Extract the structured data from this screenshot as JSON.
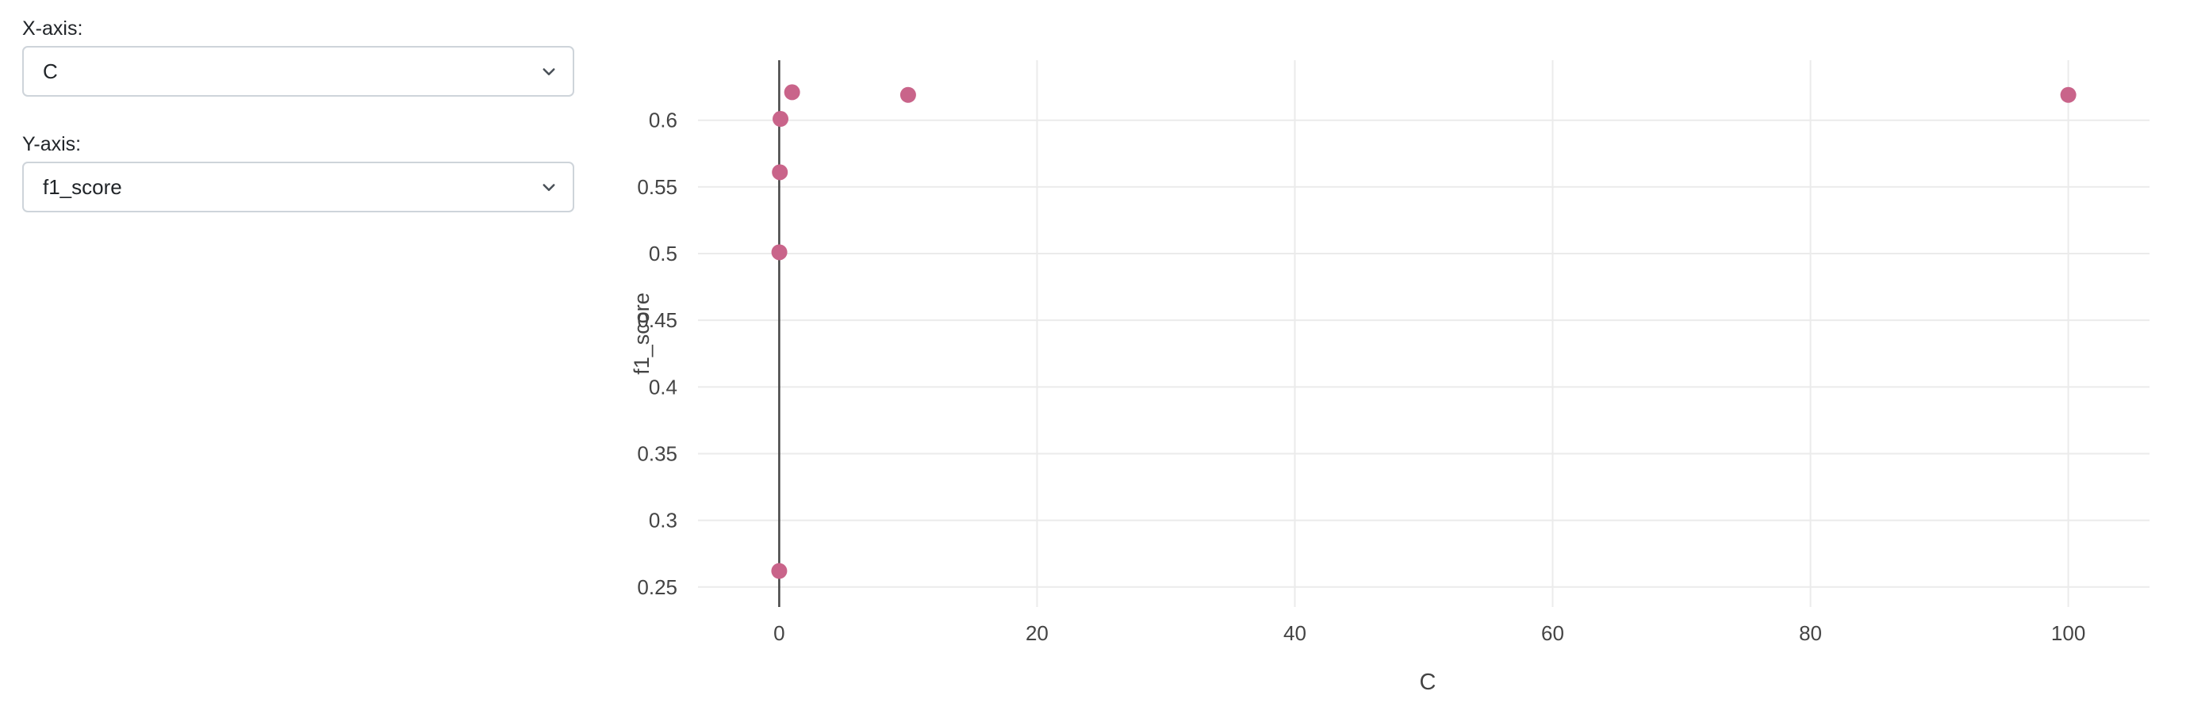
{
  "controls": {
    "x_axis": {
      "label": "X-axis:",
      "value": "C"
    },
    "y_axis": {
      "label": "Y-axis:",
      "value": "f1_score"
    }
  },
  "chart_data": {
    "type": "scatter",
    "xlabel": "C",
    "ylabel": "f1_score",
    "xlim": [
      -6.3,
      106.3
    ],
    "ylim": [
      0.235,
      0.645
    ],
    "x_ticks": [
      0,
      20,
      40,
      60,
      80,
      100
    ],
    "y_ticks": [
      0.25,
      0.3,
      0.35,
      0.4,
      0.45,
      0.5,
      0.55,
      0.6
    ],
    "x_tick_labels": [
      "0",
      "20",
      "40",
      "60",
      "80",
      "100"
    ],
    "y_tick_labels": [
      "0.25",
      "0.3",
      "0.35",
      "0.4",
      "0.45",
      "0.5",
      "0.55",
      "0.6"
    ],
    "grid": true,
    "marker_color": "#c9648a",
    "points": [
      {
        "x": 0.001,
        "y": 0.262
      },
      {
        "x": 0.01,
        "y": 0.501
      },
      {
        "x": 0.05,
        "y": 0.561
      },
      {
        "x": 0.1,
        "y": 0.601
      },
      {
        "x": 1,
        "y": 0.621
      },
      {
        "x": 10,
        "y": 0.619
      },
      {
        "x": 100,
        "y": 0.619
      }
    ]
  }
}
